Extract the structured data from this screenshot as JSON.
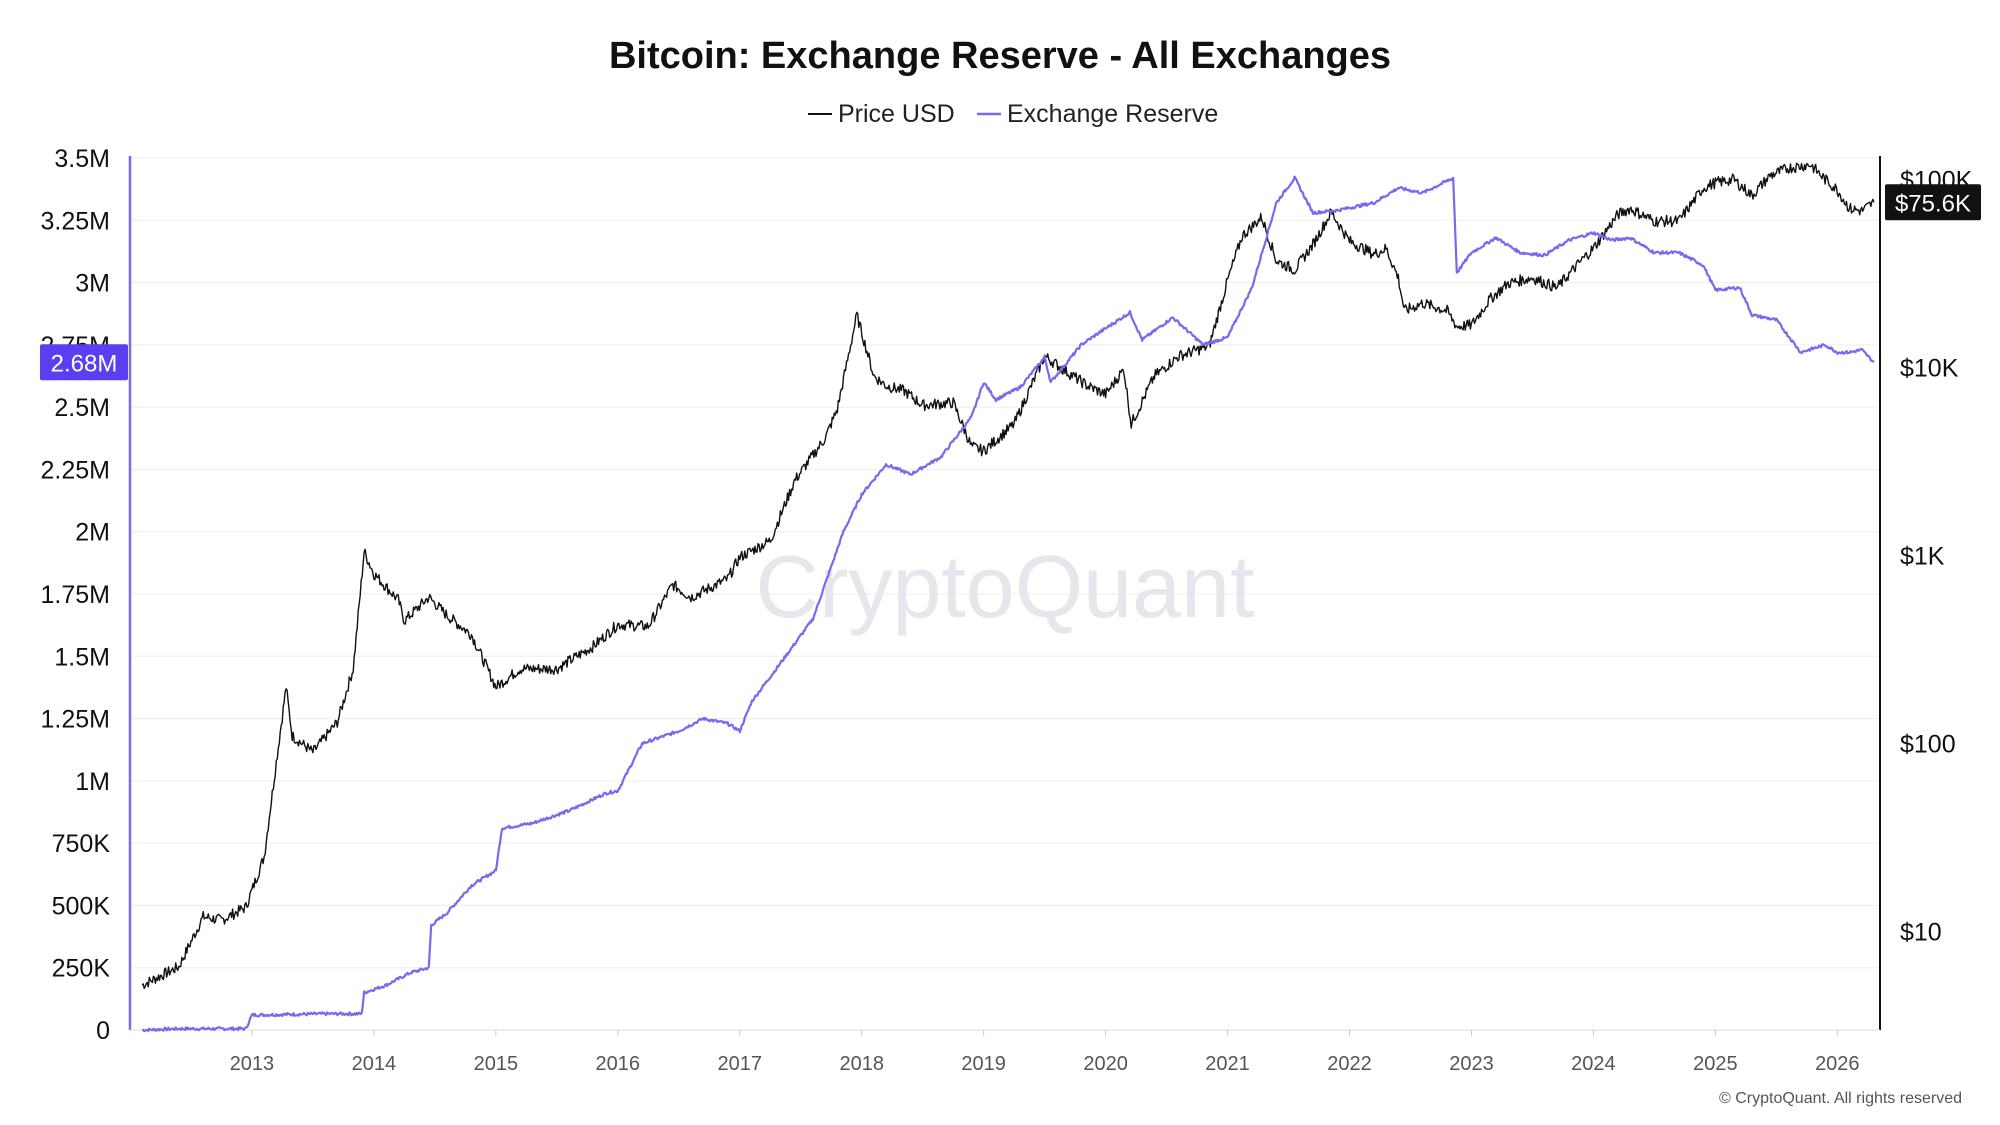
{
  "chart_data": {
    "type": "line",
    "title": "Bitcoin: Exchange Reserve - All Exchanges",
    "legend_position": "top-center",
    "grid": true,
    "x_ticks": [
      "2013",
      "2014",
      "2015",
      "2016",
      "2017",
      "2018",
      "2019",
      "2020",
      "2021",
      "2022",
      "2023",
      "2024",
      "2025",
      "2026"
    ],
    "x_range": [
      2012.0,
      2026.35
    ],
    "y_left": {
      "ticks": [
        {
          "value": 0,
          "label": "0"
        },
        {
          "value": 250000,
          "label": "250K"
        },
        {
          "value": 500000,
          "label": "500K"
        },
        {
          "value": 750000,
          "label": "750K"
        },
        {
          "value": 1000000,
          "label": "1M"
        },
        {
          "value": 1250000,
          "label": "1.25M"
        },
        {
          "value": 1500000,
          "label": "1.5M"
        },
        {
          "value": 1750000,
          "label": "1.75M"
        },
        {
          "value": 2000000,
          "label": "2M"
        },
        {
          "value": 2250000,
          "label": "2.25M"
        },
        {
          "value": 2500000,
          "label": "2.5M"
        },
        {
          "value": 2750000,
          "label": "2.75M"
        },
        {
          "value": 3000000,
          "label": "3M"
        },
        {
          "value": 3250000,
          "label": "3.25M"
        },
        {
          "value": 3500000,
          "label": "3.5M"
        }
      ],
      "range": [
        0,
        3500000
      ],
      "current_label": "2.68M",
      "current_value": 2680000
    },
    "y_right": {
      "scale": "log",
      "ticks": [
        {
          "value": 10,
          "label": "$10"
        },
        {
          "value": 100,
          "label": "$100"
        },
        {
          "value": 1000,
          "label": "$1K"
        },
        {
          "value": 10000,
          "label": "$10K"
        },
        {
          "value": 100000,
          "label": "$100K"
        }
      ],
      "range": [
        3,
        130000
      ],
      "current_label": "$75.6K",
      "current_value": 75600
    },
    "series": [
      {
        "name": "Price USD",
        "color": "#111111",
        "axis": "right",
        "points": [
          [
            2012.1,
            5.2
          ],
          [
            2012.4,
            6.5
          ],
          [
            2012.6,
            12
          ],
          [
            2012.75,
            11.5
          ],
          [
            2012.95,
            13.5
          ],
          [
            2013.1,
            25
          ],
          [
            2013.2,
            80
          ],
          [
            2013.28,
            200
          ],
          [
            2013.33,
            110
          ],
          [
            2013.5,
            90
          ],
          [
            2013.7,
            130
          ],
          [
            2013.83,
            250
          ],
          [
            2013.92,
            1050
          ],
          [
            2014.0,
            800
          ],
          [
            2014.2,
            580
          ],
          [
            2014.25,
            450
          ],
          [
            2014.45,
            600
          ],
          [
            2014.6,
            480
          ],
          [
            2014.8,
            380
          ],
          [
            2015.0,
            200
          ],
          [
            2015.2,
            250
          ],
          [
            2015.5,
            250
          ],
          [
            2015.8,
            330
          ],
          [
            2016.0,
            430
          ],
          [
            2016.25,
            420
          ],
          [
            2016.45,
            700
          ],
          [
            2016.6,
            600
          ],
          [
            2016.9,
            750
          ],
          [
            2017.0,
            980
          ],
          [
            2017.25,
            1200
          ],
          [
            2017.45,
            2500
          ],
          [
            2017.7,
            4200
          ],
          [
            2017.8,
            6000
          ],
          [
            2017.96,
            19000
          ],
          [
            2018.1,
            9000
          ],
          [
            2018.2,
            8000
          ],
          [
            2018.35,
            7500
          ],
          [
            2018.5,
            6300
          ],
          [
            2018.75,
            6500
          ],
          [
            2018.9,
            3800
          ],
          [
            2019.0,
            3600
          ],
          [
            2019.25,
            5000
          ],
          [
            2019.5,
            11500
          ],
          [
            2019.65,
            9800
          ],
          [
            2019.85,
            8000
          ],
          [
            2020.0,
            7200
          ],
          [
            2020.15,
            9800
          ],
          [
            2020.21,
            5000
          ],
          [
            2020.4,
            9000
          ],
          [
            2020.6,
            11500
          ],
          [
            2020.85,
            13000
          ],
          [
            2021.0,
            29000
          ],
          [
            2021.12,
            50000
          ],
          [
            2021.28,
            63000
          ],
          [
            2021.4,
            37000
          ],
          [
            2021.55,
            33000
          ],
          [
            2021.7,
            45000
          ],
          [
            2021.85,
            67000
          ],
          [
            2022.0,
            47000
          ],
          [
            2022.2,
            40000
          ],
          [
            2022.3,
            43000
          ],
          [
            2022.4,
            30000
          ],
          [
            2022.45,
            20000
          ],
          [
            2022.6,
            22000
          ],
          [
            2022.8,
            20000
          ],
          [
            2022.88,
            16500
          ],
          [
            2023.0,
            16800
          ],
          [
            2023.15,
            23000
          ],
          [
            2023.3,
            28000
          ],
          [
            2023.5,
            30000
          ],
          [
            2023.7,
            26500
          ],
          [
            2023.9,
            37000
          ],
          [
            2024.0,
            43000
          ],
          [
            2024.2,
            65000
          ],
          [
            2024.3,
            70000
          ],
          [
            2024.5,
            60000
          ],
          [
            2024.7,
            60000
          ],
          [
            2024.9,
            90000
          ],
          [
            2025.0,
            96000
          ],
          [
            2025.15,
            100000
          ],
          [
            2025.3,
            82000
          ],
          [
            2025.45,
            105000
          ],
          [
            2025.6,
            115000
          ],
          [
            2025.78,
            120000
          ],
          [
            2025.9,
            100000
          ],
          [
            2026.0,
            88000
          ],
          [
            2026.1,
            70000
          ],
          [
            2026.2,
            68000
          ],
          [
            2026.3,
            75600
          ]
        ]
      },
      {
        "name": "Exchange Reserve",
        "color": "#7b68ee",
        "axis": "left",
        "points": [
          [
            2012.1,
            0
          ],
          [
            2012.4,
            5000
          ],
          [
            2012.7,
            5000
          ],
          [
            2012.95,
            5000
          ],
          [
            2013.0,
            60000
          ],
          [
            2013.6,
            65000
          ],
          [
            2013.9,
            65000
          ],
          [
            2013.92,
            150000
          ],
          [
            2014.1,
            180000
          ],
          [
            2014.3,
            230000
          ],
          [
            2014.45,
            250000
          ],
          [
            2014.47,
            420000
          ],
          [
            2014.6,
            470000
          ],
          [
            2014.8,
            580000
          ],
          [
            2015.0,
            640000
          ],
          [
            2015.05,
            810000
          ],
          [
            2015.3,
            830000
          ],
          [
            2015.6,
            880000
          ],
          [
            2015.9,
            950000
          ],
          [
            2016.0,
            960000
          ],
          [
            2016.2,
            1150000
          ],
          [
            2016.5,
            1200000
          ],
          [
            2016.7,
            1250000
          ],
          [
            2016.9,
            1230000
          ],
          [
            2017.0,
            1200000
          ],
          [
            2017.1,
            1320000
          ],
          [
            2017.3,
            1450000
          ],
          [
            2017.6,
            1650000
          ],
          [
            2017.85,
            2000000
          ],
          [
            2018.0,
            2150000
          ],
          [
            2018.2,
            2270000
          ],
          [
            2018.4,
            2230000
          ],
          [
            2018.65,
            2300000
          ],
          [
            2018.9,
            2460000
          ],
          [
            2019.0,
            2600000
          ],
          [
            2019.1,
            2530000
          ],
          [
            2019.3,
            2580000
          ],
          [
            2019.5,
            2700000
          ],
          [
            2019.55,
            2600000
          ],
          [
            2019.8,
            2750000
          ],
          [
            2019.95,
            2800000
          ],
          [
            2020.2,
            2880000
          ],
          [
            2020.3,
            2770000
          ],
          [
            2020.55,
            2860000
          ],
          [
            2020.8,
            2750000
          ],
          [
            2021.0,
            2780000
          ],
          [
            2021.2,
            2980000
          ],
          [
            2021.4,
            3320000
          ],
          [
            2021.55,
            3420000
          ],
          [
            2021.7,
            3280000
          ],
          [
            2021.9,
            3290000
          ],
          [
            2022.0,
            3300000
          ],
          [
            2022.2,
            3320000
          ],
          [
            2022.4,
            3380000
          ],
          [
            2022.6,
            3360000
          ],
          [
            2022.85,
            3420000
          ],
          [
            2022.88,
            3040000
          ],
          [
            2023.0,
            3120000
          ],
          [
            2023.2,
            3180000
          ],
          [
            2023.4,
            3120000
          ],
          [
            2023.6,
            3110000
          ],
          [
            2023.8,
            3170000
          ],
          [
            2024.0,
            3200000
          ],
          [
            2024.15,
            3170000
          ],
          [
            2024.3,
            3180000
          ],
          [
            2024.5,
            3120000
          ],
          [
            2024.7,
            3120000
          ],
          [
            2024.9,
            3070000
          ],
          [
            2025.0,
            2970000
          ],
          [
            2025.2,
            2980000
          ],
          [
            2025.3,
            2870000
          ],
          [
            2025.5,
            2850000
          ],
          [
            2025.7,
            2720000
          ],
          [
            2025.9,
            2750000
          ],
          [
            2026.0,
            2720000
          ],
          [
            2026.1,
            2720000
          ],
          [
            2026.2,
            2730000
          ],
          [
            2026.3,
            2680000
          ]
        ]
      }
    ],
    "watermark": "CryptoQuant",
    "footer": "© CryptoQuant. All rights reserved"
  }
}
